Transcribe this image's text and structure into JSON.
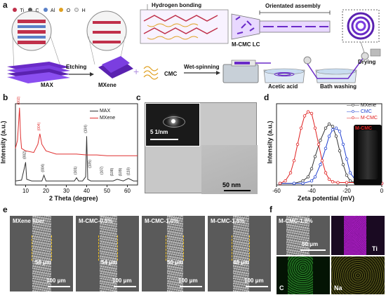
{
  "panel_a": {
    "label": "a",
    "legend": [
      {
        "symbol": "Ti",
        "color": "#c0304a"
      },
      {
        "symbol": "C",
        "color": "#555555"
      },
      {
        "symbol": "Al",
        "color": "#5a80c8"
      },
      {
        "symbol": "O",
        "color": "#e0a020"
      },
      {
        "symbol": "H",
        "color": "#e8e8e8"
      }
    ],
    "hydrogen_bonding": "Hydrogen bonding",
    "orientated_assembly": "Orientated assembly",
    "mcmc_lc": "M-CMC LC",
    "drying": "Drying",
    "etching": "Etching",
    "max": "MAX",
    "mxene": "MXene",
    "cmc": "CMC",
    "wet_spinning": "Wet-spinning",
    "acetic_acid": "Acetic acid",
    "bath_washing": "Bath washing",
    "plus": "+"
  },
  "panel_b": {
    "label": "b",
    "xlabel": "2 Theta (degree)",
    "ylabel": "Intensity (a.u.)",
    "legend_max": "MAX",
    "legend_mxene": "MXene",
    "peaks_mxene": [
      "(002)",
      "(004)"
    ],
    "peaks_max": [
      "(002)",
      "(004)",
      "(101)",
      "(104)",
      "(105)",
      "(107)",
      "(108)",
      "(109)",
      "(110)"
    ]
  },
  "panel_c": {
    "label": "c",
    "inset_scale": "5 1/nm",
    "scale": "50 nm"
  },
  "panel_d": {
    "label": "d",
    "xlabel": "Zeta potential (mV)",
    "ylabel": "Intensity (a.u.)",
    "legend": [
      "MXene",
      "CMC",
      "M-CMC"
    ],
    "vial_label": "M-CMC"
  },
  "panel_e": {
    "label": "e",
    "items": [
      {
        "title": "MXene fiber",
        "diameter": "58 μm",
        "scale": "100 μm"
      },
      {
        "title": "M-CMC-0.5%",
        "diameter": "54 μm",
        "scale": "100 μm"
      },
      {
        "title": "M-CMC-1.0%",
        "diameter": "50 μm",
        "scale": "100 μm"
      },
      {
        "title": "M-CMC-1.5%",
        "diameter": "48 μm",
        "scale": "100 μm"
      }
    ]
  },
  "panel_f": {
    "label": "f",
    "title": "M-CMC-1.0%",
    "scale": "50 μm",
    "elements": [
      "Ti",
      "C",
      "Na"
    ]
  },
  "chart_data": [
    {
      "type": "line",
      "title": "",
      "xlabel": "2 Theta (degree)",
      "ylabel": "Intensity (a.u.)",
      "xlim": [
        5,
        65
      ],
      "xticks": [
        10,
        20,
        30,
        40,
        50,
        60
      ],
      "series": [
        {
          "name": "MAX",
          "color": "#333333",
          "x": [
            5,
            8,
            9.5,
            10,
            10.5,
            13,
            18,
            19,
            20,
            25,
            34,
            35,
            36,
            38,
            39.5,
            40,
            40.5,
            42,
            48,
            53,
            55,
            58,
            60.5,
            63,
            65
          ],
          "y": [
            0.05,
            0.06,
            0.22,
            0.28,
            0.07,
            0.05,
            0.05,
            0.12,
            0.05,
            0.05,
            0.05,
            0.09,
            0.05,
            0.05,
            0.1,
            0.6,
            0.07,
            0.05,
            0.05,
            0.05,
            0.07,
            0.05,
            0.08,
            0.05,
            0.05
          ]
        },
        {
          "name": "MXene",
          "color": "#e03030",
          "x": [
            5,
            6,
            6.5,
            7,
            7.5,
            8,
            10,
            14,
            16,
            17,
            18,
            20,
            25,
            30,
            35,
            40,
            45,
            50,
            55,
            60,
            65
          ],
          "y": [
            0.45,
            0.55,
            0.75,
            0.95,
            0.6,
            0.45,
            0.42,
            0.4,
            0.5,
            0.63,
            0.5,
            0.42,
            0.38,
            0.38,
            0.38,
            0.37,
            0.37,
            0.36,
            0.36,
            0.36,
            0.36
          ]
        }
      ]
    },
    {
      "type": "line",
      "title": "",
      "xlabel": "Zeta potential (mV)",
      "ylabel": "Intensity (a.u.)",
      "xlim": [
        -60,
        0
      ],
      "xticks": [
        -60,
        -40,
        -20,
        0
      ],
      "series": [
        {
          "name": "MXene",
          "color": "#333333",
          "x": [
            -58,
            -50,
            -45,
            -42,
            -40,
            -38,
            -35,
            -32,
            -30,
            -28,
            -26,
            -24,
            -22,
            -20,
            -18,
            -15,
            -10,
            -5,
            0
          ],
          "y": [
            0.02,
            0.02,
            0.05,
            0.1,
            0.2,
            0.35,
            0.55,
            0.7,
            0.75,
            0.72,
            0.6,
            0.42,
            0.25,
            0.12,
            0.05,
            0.03,
            0.03,
            0.03,
            0.02
          ]
        },
        {
          "name": "CMC",
          "color": "#2040d0",
          "x": [
            -58,
            -50,
            -45,
            -40,
            -38,
            -35,
            -32,
            -30,
            -28,
            -26,
            -24,
            -22,
            -20,
            -18,
            -15,
            -12,
            -10,
            -5,
            0
          ],
          "y": [
            0.02,
            0.02,
            0.02,
            0.05,
            0.1,
            0.25,
            0.45,
            0.6,
            0.68,
            0.7,
            0.66,
            0.5,
            0.32,
            0.15,
            0.06,
            0.03,
            0.03,
            0.03,
            0.02
          ]
        },
        {
          "name": "M-CMC",
          "color": "#e02020",
          "x": [
            -58,
            -55,
            -52,
            -50,
            -48,
            -46,
            -44,
            -42,
            -40,
            -38,
            -36,
            -34,
            -32,
            -30,
            -28,
            -25,
            -20,
            -10,
            0
          ],
          "y": [
            0.02,
            0.05,
            0.15,
            0.3,
            0.5,
            0.7,
            0.85,
            0.9,
            0.88,
            0.7,
            0.5,
            0.3,
            0.15,
            0.07,
            0.04,
            0.03,
            0.03,
            0.03,
            0.02
          ]
        }
      ]
    }
  ]
}
